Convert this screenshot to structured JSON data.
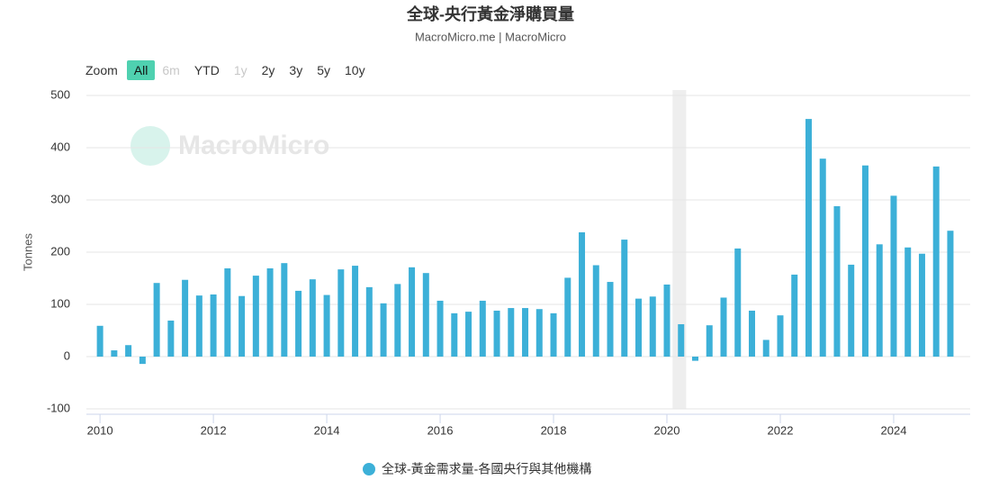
{
  "chart_data": {
    "type": "bar",
    "title": "全球-央行黃金淨購買量",
    "subtitle": "MacroMicro.me | MacroMicro",
    "watermark": "MacroMicro",
    "zoom_label": "Zoom",
    "range_buttons": [
      {
        "label": "All",
        "selected": true
      },
      {
        "label": "6m",
        "disabled": true
      },
      {
        "label": "YTD"
      },
      {
        "label": "1y",
        "disabled": true
      },
      {
        "label": "2y"
      },
      {
        "label": "3y"
      },
      {
        "label": "5y"
      },
      {
        "label": "10y"
      }
    ],
    "y_label": "Tonnes",
    "x": [
      2010,
      2010.25,
      2010.5,
      2010.75,
      2011,
      2011.25,
      2011.5,
      2011.75,
      2012,
      2012.25,
      2012.5,
      2012.75,
      2013,
      2013.25,
      2013.5,
      2013.75,
      2014,
      2014.25,
      2014.5,
      2014.75,
      2015,
      2015.25,
      2015.5,
      2015.75,
      2016,
      2016.25,
      2016.5,
      2016.75,
      2017,
      2017.25,
      2017.5,
      2017.75,
      2018,
      2018.25,
      2018.5,
      2018.75,
      2019,
      2019.25,
      2019.5,
      2019.75,
      2020,
      2020.25,
      2020.5,
      2020.75,
      2021,
      2021.25,
      2021.5,
      2021.75,
      2022,
      2022.25,
      2022.5,
      2022.75,
      2023,
      2023.25,
      2023.5,
      2023.75,
      2024,
      2024.25,
      2024.5,
      2024.75,
      2025
    ],
    "series": [
      {
        "name": "全球-黃金需求量-各國央行與其他機構",
        "color": "#3cb0d8",
        "values": [
          59,
          12,
          22,
          -14,
          141,
          69,
          147,
          117,
          119,
          169,
          116,
          155,
          169,
          179,
          126,
          148,
          118,
          167,
          174,
          133,
          102,
          139,
          171,
          160,
          107,
          83,
          86,
          107,
          88,
          93,
          93,
          91,
          83,
          151,
          238,
          175,
          143,
          224,
          111,
          115,
          138,
          62,
          -8,
          60,
          113,
          207,
          88,
          32,
          79,
          157,
          455,
          379,
          288,
          176,
          366,
          215,
          308,
          209,
          197,
          364,
          241
        ]
      }
    ],
    "shaded_x": [
      2020.1,
      2020.34
    ],
    "xlim": [
      2009.76,
      2025.35
    ],
    "xticks": [
      2010,
      2012,
      2014,
      2016,
      2018,
      2020,
      2022,
      2024
    ],
    "ylim": [
      -100,
      500
    ],
    "yticks": [
      -100,
      0,
      100,
      200,
      300,
      400,
      500
    ],
    "grid": true
  }
}
